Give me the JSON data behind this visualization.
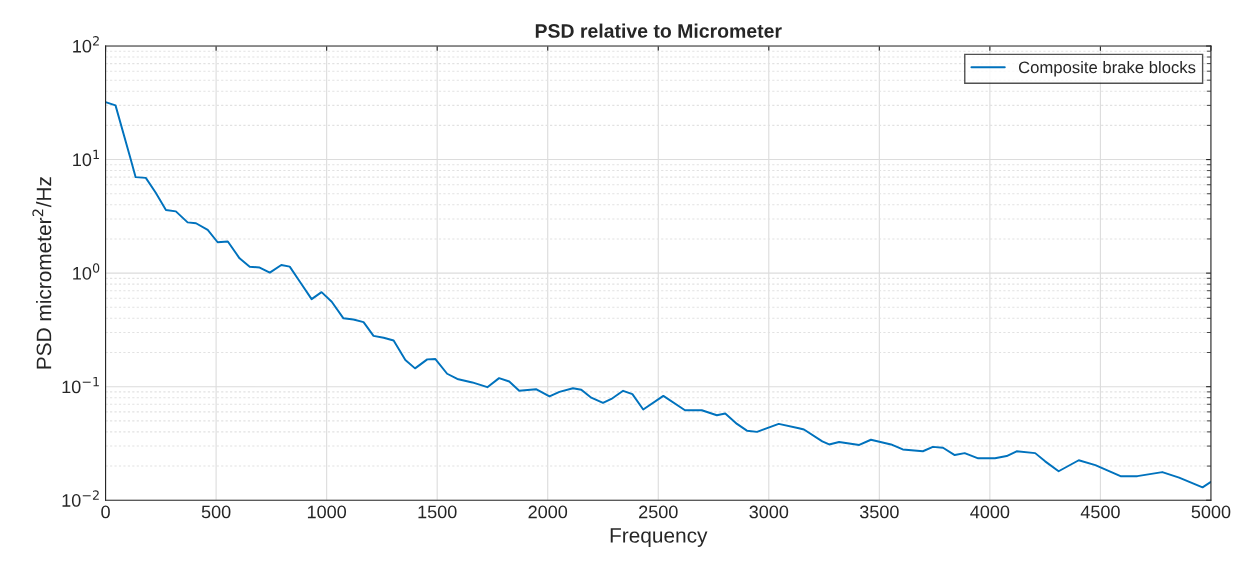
{
  "chart_data": {
    "type": "line",
    "title": "PSD relative to Micrometer",
    "xlabel": "Frequency",
    "ylabel": "PSD micrometer$^{2}$/Hz",
    "series": [
      {
        "name": "Composite brake blocks",
        "color": "#0072bd",
        "x": [
          0,
          45,
          114,
          136,
          182,
          227,
          273,
          318,
          371,
          409,
          462,
          507,
          553,
          606,
          652,
          697,
          743,
          795,
          833,
          879,
          932,
          977,
          1023,
          1076,
          1121,
          1167,
          1212,
          1258,
          1303,
          1356,
          1400,
          1455,
          1492,
          1545,
          1591,
          1659,
          1727,
          1780,
          1826,
          1871,
          1947,
          2008,
          2053,
          2114,
          2152,
          2197,
          2250,
          2288,
          2341,
          2383,
          2432,
          2523,
          2621,
          2697,
          2765,
          2803,
          2856,
          2901,
          2947,
          3045,
          3136,
          3159,
          3242,
          3273,
          3318,
          3409,
          3462,
          3553,
          3606,
          3697,
          3742,
          3788,
          3841,
          3886,
          3947,
          4023,
          4076,
          4121,
          4205,
          4250,
          4311,
          4402,
          4477,
          4591,
          4667,
          4780,
          4856,
          4962,
          5000
        ],
        "values": [
          32,
          30,
          10,
          7.0,
          6.9,
          5.1,
          3.6,
          3.5,
          2.8,
          2.75,
          2.4,
          1.87,
          1.9,
          1.35,
          1.14,
          1.12,
          1.01,
          1.18,
          1.14,
          0.84,
          0.59,
          0.68,
          0.56,
          0.4,
          0.39,
          0.37,
          0.28,
          0.27,
          0.255,
          0.172,
          0.145,
          0.174,
          0.175,
          0.13,
          0.117,
          0.109,
          0.099,
          0.119,
          0.111,
          0.092,
          0.095,
          0.082,
          0.09,
          0.097,
          0.094,
          0.08,
          0.072,
          0.078,
          0.092,
          0.086,
          0.063,
          0.083,
          0.062,
          0.062,
          0.056,
          0.058,
          0.047,
          0.041,
          0.04,
          0.047,
          0.043,
          0.042,
          0.033,
          0.031,
          0.0326,
          0.0307,
          0.0341,
          0.031,
          0.028,
          0.027,
          0.0295,
          0.029,
          0.025,
          0.026,
          0.0234,
          0.0234,
          0.0245,
          0.027,
          0.026,
          0.022,
          0.018,
          0.0225,
          0.0204,
          0.0163,
          0.0163,
          0.0177,
          0.0158,
          0.013,
          0.0145
        ]
      }
    ],
    "log": "y",
    "grid": true,
    "legend": "top right",
    "line_style": "solid",
    "marker": "none",
    "xlim": [
      0,
      5000
    ],
    "xticks": [
      0,
      500,
      1000,
      1500,
      2000,
      2500,
      3000,
      3500,
      4000,
      4500,
      5000
    ],
    "ylim": [
      0.01,
      100
    ],
    "yticks": [
      {
        "value": 0.01,
        "label": "10$^{−2}$"
      },
      {
        "value": 0.1,
        "label": "10$^{−1}$"
      },
      {
        "value": 1,
        "label": "10$^{0}$"
      },
      {
        "value": 10,
        "label": "10$^{1}$"
      },
      {
        "value": 100,
        "label": "10$^{2}$"
      }
    ]
  }
}
